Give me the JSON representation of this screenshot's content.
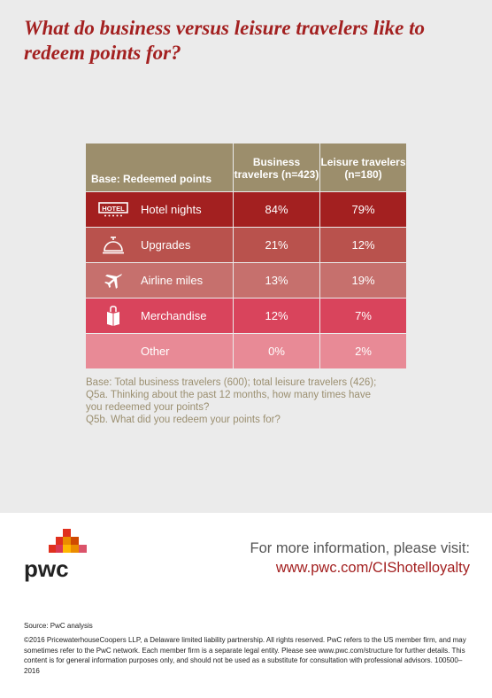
{
  "title": "What do business versus leisure travelers like to redeem points for?",
  "table": {
    "base_label": "Base: Redeemed points",
    "col1": "Business travelers (n=423)",
    "col2": "Leisure travelers (n=180)",
    "rows": [
      {
        "label": "Hotel nights",
        "icon": "hotel-sign-icon",
        "business": "84%",
        "leisure": "79%",
        "color": "#a32020"
      },
      {
        "label": "Upgrades",
        "icon": "service-bell-icon",
        "business": "21%",
        "leisure": "12%",
        "color": "#b9524d"
      },
      {
        "label": "Airline miles",
        "icon": "airplane-icon",
        "business": "13%",
        "leisure": "19%",
        "color": "#c6706d"
      },
      {
        "label": "Merchandise",
        "icon": "gift-bag-icon",
        "business": "12%",
        "leisure": "7%",
        "color": "#d9445c"
      },
      {
        "label": "Other",
        "icon": "",
        "business": "0%",
        "leisure": "2%",
        "color": "#e88a96"
      }
    ]
  },
  "notes": {
    "line1": "Base: Total business travelers (600); total leisure travelers (426);",
    "line2": "Q5a. Thinking about the past 12 months, how many times have you redeemed your points?",
    "line3": "Q5b. What did you redeem your points for?"
  },
  "footer": {
    "logo_text": "pwc",
    "more_info": "For more information, please visit:",
    "url": "www.pwc.com/CIShotelloyalty",
    "source": "Source: PwC analysis",
    "copyright": "©2016 PricewaterhouseCoopers LLP, a Delaware limited liability partnership. All rights reserved. PwC refers to the US member firm, and may sometimes refer to the PwC network. Each member firm is a separate legal entity. Please see www.pwc.com/structure for further details. This content is for general information purposes only, and should not be used as a substitute for consultation with professional advisors. 100500–2016"
  },
  "colors": {
    "title": "#a32020",
    "header": "#9c8e6c",
    "url": "#a32020",
    "notes": "#9b8f70"
  }
}
